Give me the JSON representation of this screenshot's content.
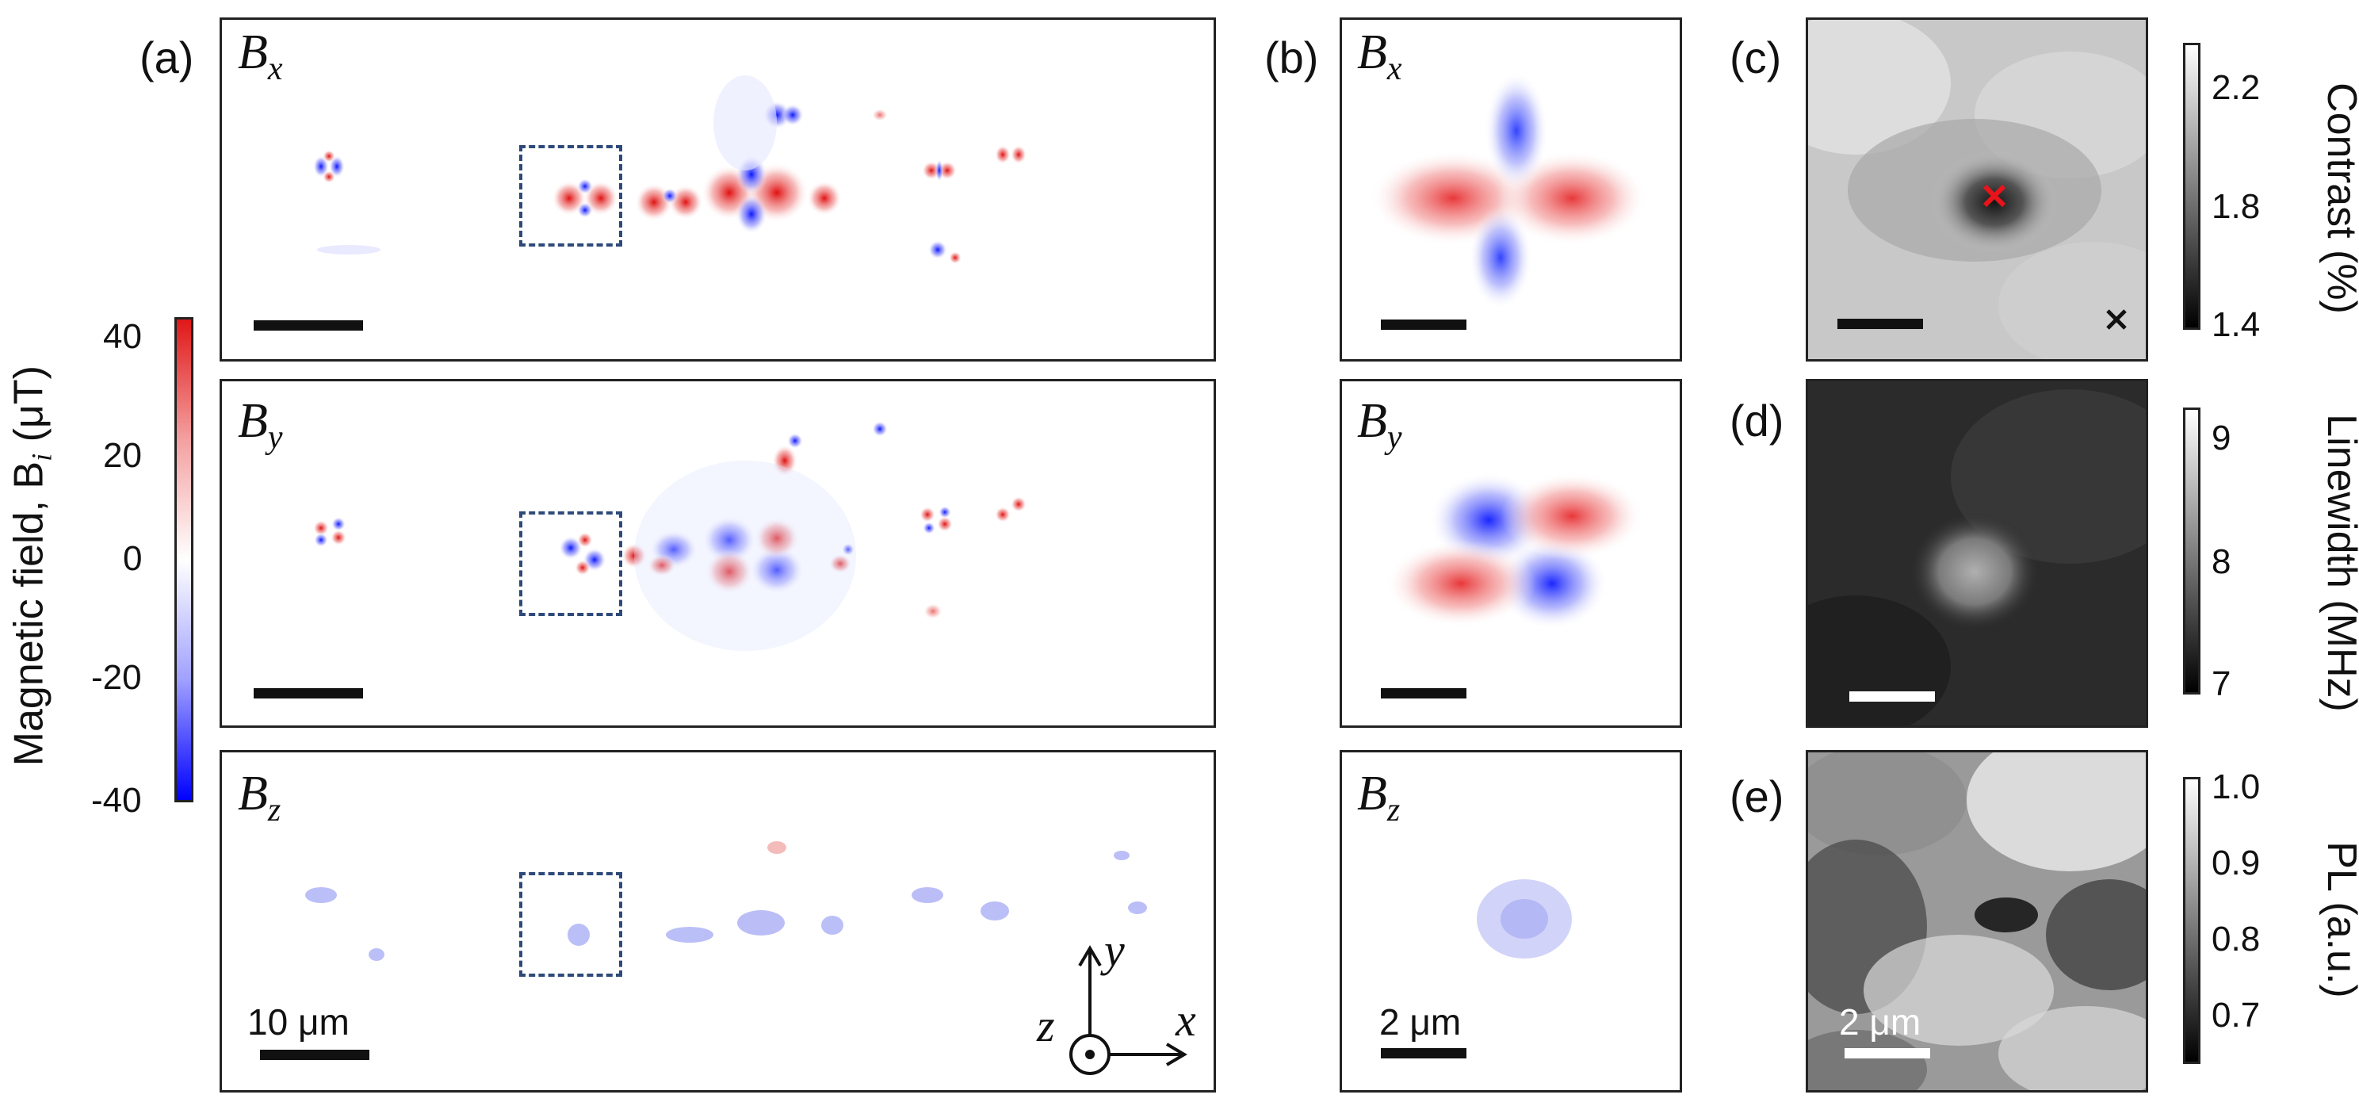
{
  "colormap_main": {
    "ticks": [
      "40",
      "20",
      "0",
      "-20",
      "-40"
    ],
    "title": "Magnetic field, B",
    "title_sub": "i",
    "title_unit": " (μT)",
    "top_color": "#d7191c",
    "bottom_color": "#1a1aff"
  },
  "panels": {
    "a_label": "(a)",
    "b_label": "(b)",
    "c_label": "(c)",
    "d_label": "(d)",
    "e_label": "(e)"
  },
  "components": {
    "x_main": "B",
    "x_sub": "x",
    "y_main": "B",
    "y_sub": "y",
    "z_main": "B",
    "z_sub": "z"
  },
  "scalebars": {
    "a_label": "10 μm",
    "b_label": "2 μm",
    "e_label": "2 μm"
  },
  "axes_glyph": {
    "x": "x",
    "y": "y",
    "z": "z"
  },
  "colorbar_c": {
    "title": "Contrast (%)",
    "ticks": [
      "2.2",
      "1.8",
      "1.4"
    ]
  },
  "colorbar_d": {
    "title": "Linewidth (MHz)",
    "ticks": [
      "9",
      "8",
      "7"
    ]
  },
  "colorbar_e": {
    "title": "PL (a.u.)",
    "ticks": [
      "1.0",
      "0.9",
      "0.8",
      "0.7"
    ]
  },
  "markers": {
    "red_x_color": "#e8141a",
    "black_x_color": "#111111"
  }
}
